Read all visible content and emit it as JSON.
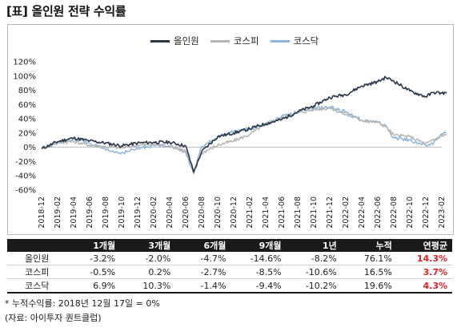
{
  "title": "[표] 올인원 전략 수익률",
  "chart_data": {
    "type": "line",
    "ylim": [
      -0.6,
      1.2
    ],
    "yticks": [
      "120%",
      "100%",
      "80%",
      "60%",
      "40%",
      "20%",
      "0%",
      "-20%",
      "-40%",
      "-60%"
    ],
    "ytick_values": [
      1.2,
      1.0,
      0.8,
      0.6,
      0.4,
      0.2,
      0.0,
      -0.2,
      -0.4,
      -0.6
    ],
    "xticks": [
      "2018-12",
      "2019-02",
      "2019-04",
      "2019-06",
      "2019-08",
      "2019-10",
      "2019-12",
      "2020-02",
      "2020-04",
      "2020-06",
      "2020-08",
      "2020-10",
      "2020-12",
      "2021-02",
      "2021-04",
      "2021-06",
      "2021-08",
      "2021-10",
      "2021-12",
      "2022-02",
      "2022-04",
      "2022-06",
      "2022-08",
      "2022-10",
      "2022-12",
      "2023-02"
    ],
    "legend_position": "top-center",
    "series": [
      {
        "name": "올인원",
        "color": "#2b3648",
        "x": [
          0,
          1,
          2,
          3,
          4,
          5,
          6,
          7,
          8,
          9,
          9.5,
          10,
          11,
          12,
          13,
          14,
          15,
          16,
          17,
          18,
          19,
          20,
          21,
          21.5,
          22,
          23,
          24,
          24.5,
          25,
          25.3
        ],
        "values": [
          -0.02,
          0.08,
          0.13,
          0.09,
          0.06,
          0.02,
          0.06,
          0.07,
          0.07,
          0.02,
          -0.35,
          -0.06,
          0.15,
          0.2,
          0.26,
          0.33,
          0.39,
          0.5,
          0.58,
          0.7,
          0.74,
          0.86,
          0.92,
          0.98,
          0.93,
          0.79,
          0.71,
          0.77,
          0.76,
          0.76
        ]
      },
      {
        "name": "코스피",
        "color": "#b5b5b5",
        "x": [
          0,
          1,
          2,
          3,
          4,
          5,
          6,
          7,
          8,
          9,
          9.5,
          10,
          11,
          12,
          13,
          14,
          15,
          16,
          17,
          18,
          19,
          20,
          21,
          21.5,
          22,
          23,
          24,
          24.5,
          25,
          25.3
        ],
        "values": [
          -0.01,
          0.07,
          0.08,
          0.03,
          0.01,
          -0.01,
          0.03,
          0.04,
          0.02,
          -0.05,
          -0.32,
          -0.08,
          0.03,
          0.09,
          0.18,
          0.33,
          0.41,
          0.48,
          0.53,
          0.55,
          0.46,
          0.38,
          0.35,
          0.29,
          0.17,
          0.15,
          0.05,
          0.1,
          0.17,
          0.17
        ]
      },
      {
        "name": "코스닥",
        "color": "#8fb5dc",
        "x": [
          0,
          1,
          2,
          3,
          4,
          5,
          6,
          7,
          8,
          9,
          9.5,
          10,
          11,
          12,
          13,
          14,
          15,
          16,
          17,
          18,
          19,
          20,
          21,
          21.5,
          22,
          23,
          24,
          24.5,
          25,
          25.3
        ],
        "values": [
          -0.01,
          0.06,
          0.12,
          0.06,
          -0.04,
          -0.08,
          -0.02,
          0.03,
          0.02,
          -0.07,
          -0.37,
          0.01,
          0.14,
          0.22,
          0.26,
          0.32,
          0.44,
          0.5,
          0.55,
          0.56,
          0.5,
          0.38,
          0.35,
          0.3,
          0.13,
          0.1,
          0.02,
          0.06,
          0.19,
          0.2
        ]
      }
    ]
  },
  "table": {
    "headers": [
      "",
      "1개월",
      "3개월",
      "6개월",
      "9개월",
      "1년",
      "누적",
      "연평균"
    ],
    "rows": [
      {
        "name": "올인원",
        "cells": [
          "-3.2%",
          "-2.0%",
          "-4.7%",
          "-14.6%",
          "-8.2%",
          "76.1%",
          "14.3%"
        ]
      },
      {
        "name": "코스피",
        "cells": [
          "-0.5%",
          "0.2%",
          "-2.7%",
          "-8.5%",
          "-10.6%",
          "16.5%",
          "3.7%"
        ]
      },
      {
        "name": "코스닥",
        "cells": [
          "6.9%",
          "10.3%",
          "-1.4%",
          "-9.4%",
          "-10.2%",
          "19.6%",
          "4.3%"
        ]
      }
    ],
    "highlight_color": "#e0202a"
  },
  "notes": {
    "footnote": "* 누적수익률: 2018년 12월 17일 = 0%",
    "source": "(자료: 아이투자 퀀트클럽)"
  }
}
